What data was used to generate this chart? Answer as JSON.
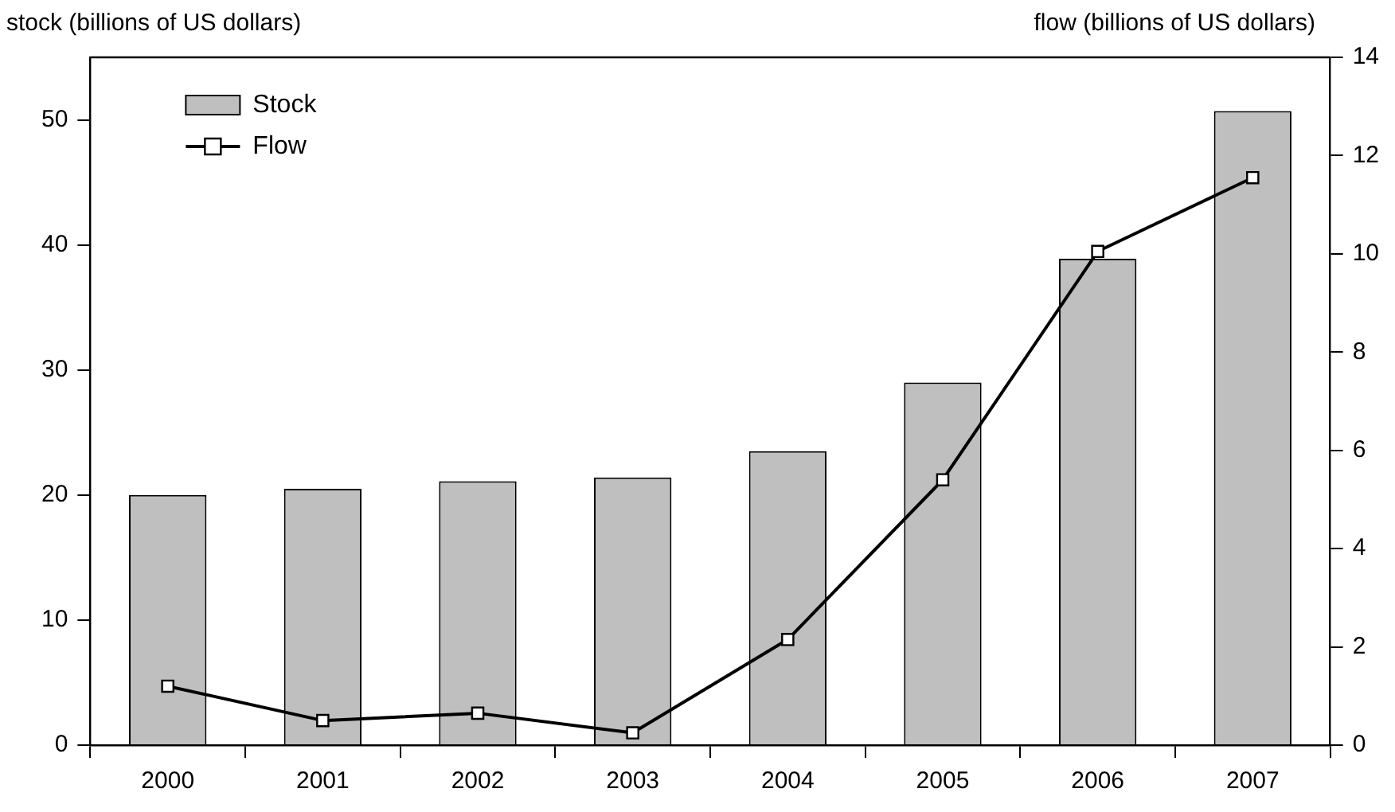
{
  "chart_data": {
    "type": "bar",
    "ylabel": "stock (billions of US dollars)",
    "y2label": "flow (billions of US dollars)",
    "categories": [
      "2000",
      "2001",
      "2002",
      "2003",
      "2004",
      "2005",
      "2006",
      "2007"
    ],
    "series": [
      {
        "name": "Stock",
        "color": "#bfbfbf",
        "values": [
          20.0,
          20.5,
          21.1,
          21.4,
          23.5,
          29.0,
          38.9,
          50.7
        ]
      },
      {
        "name": "Flow",
        "type": "line",
        "axis": "y2",
        "color": "#000000",
        "marker": "square",
        "values": [
          1.2,
          0.5,
          0.65,
          0.25,
          2.15,
          5.4,
          10.05,
          11.55
        ]
      }
    ],
    "ylim": [
      0,
      55
    ],
    "yticks": [
      0,
      10,
      20,
      30,
      40,
      50
    ],
    "y2lim": [
      0,
      14
    ],
    "y2ticks": [
      0,
      2,
      4,
      6,
      8,
      10,
      12,
      14
    ],
    "grid": false,
    "legend": "top left"
  }
}
